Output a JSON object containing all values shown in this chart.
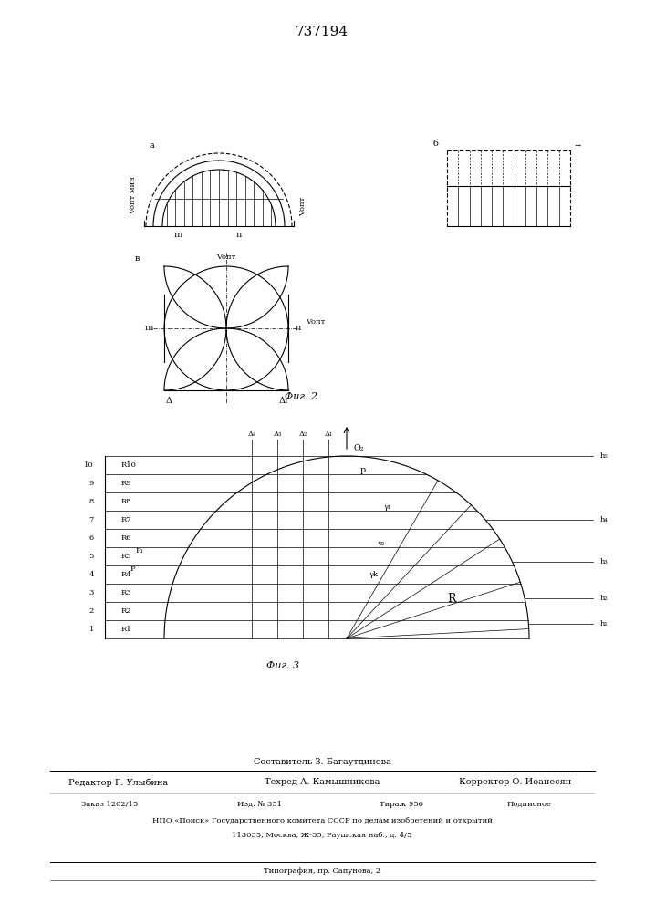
{
  "title": "737194",
  "bg_color": "#ffffff",
  "fig2_caption": "Фиг. 2",
  "fig3_caption": "Фиг. 3",
  "footer_composer": "Составитель З. Багаутдинова",
  "footer_editor": "Редактор Г. Улыбина",
  "footer_techred": "Техред А. Камышникова",
  "footer_corrector": "Корректор О. Иоанесян",
  "footer_order": "Заказ 1202/15",
  "footer_izd": "Изд. № 351",
  "footer_tirazh": "Тираж 956",
  "footer_podpisnoe": "Подписное",
  "footer_npo": "НПО «Поиск» Государственного комитета СССР по делам изобретений и открытий",
  "footer_addr": "113035, Москва, Ж-35, Раушская наб., д. 4/5",
  "footer_tipografia": "Типография, пр. Сапунова, 2"
}
